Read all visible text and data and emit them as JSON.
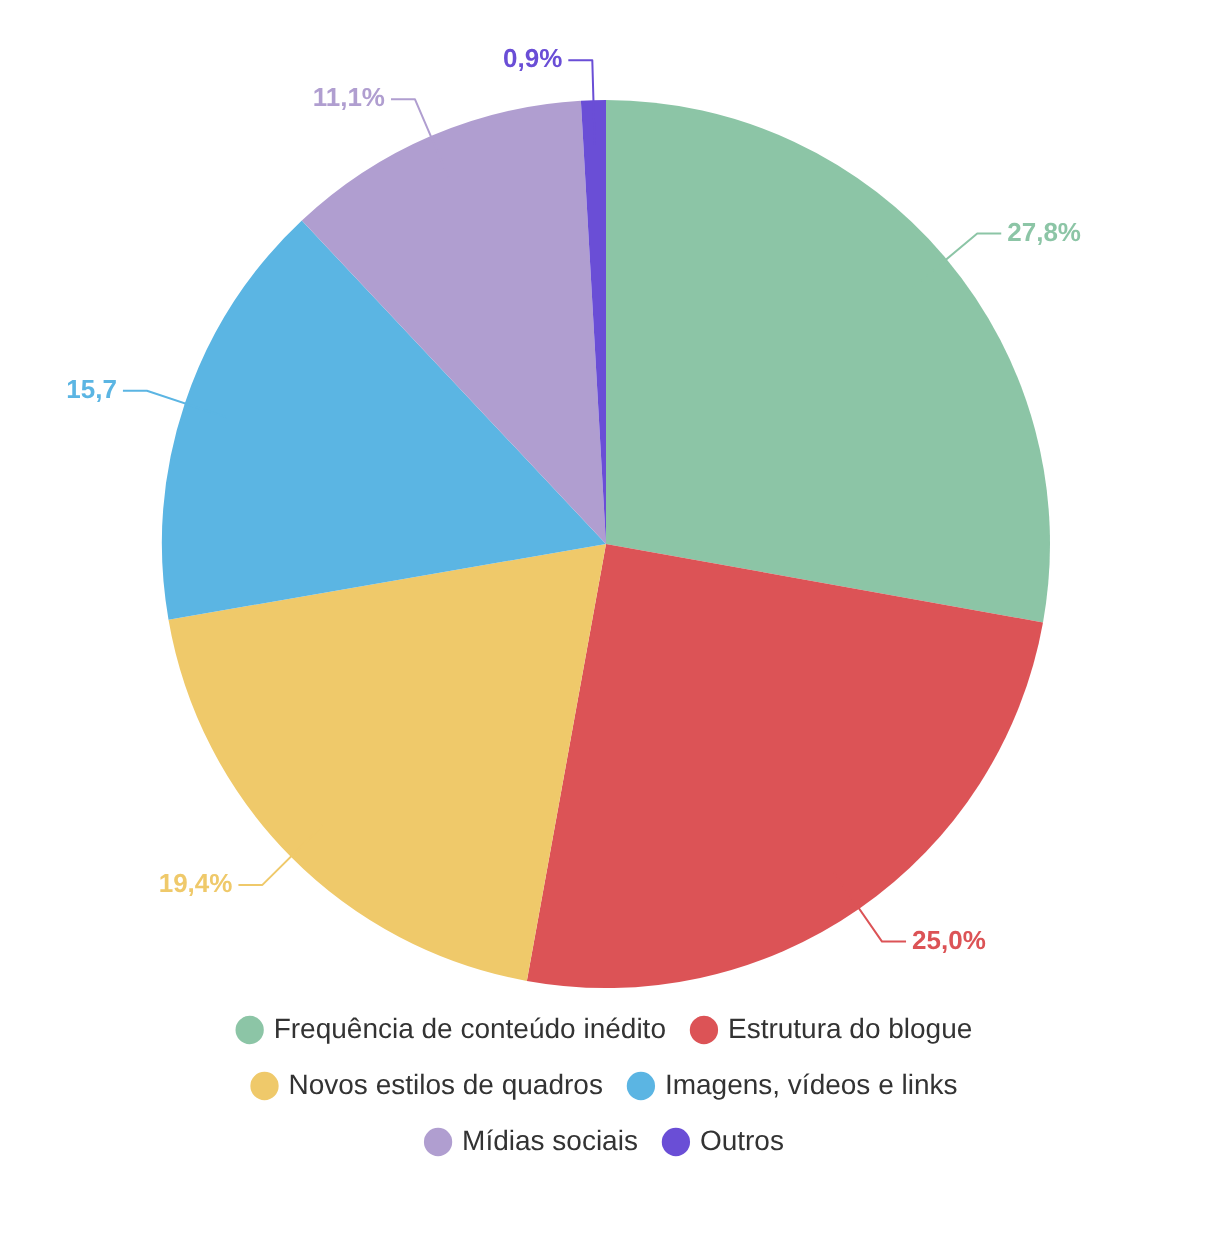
{
  "chart_data": {
    "type": "pie",
    "categories": [
      "Frequência de conteúdo inédito",
      "Estrutura do blogue",
      "Novos estilos de quadros",
      "Imagens, vídeos e links",
      "Mídias sociais",
      "Outros"
    ],
    "values": [
      27.8,
      25.0,
      19.4,
      15.7,
      11.1,
      0.9
    ],
    "value_labels": [
      "27,8%",
      "25,0%",
      "19,4%",
      "15,7",
      "11,1%",
      "0,9%"
    ],
    "colors": [
      "#8cc5a6",
      "#dc5356",
      "#efc96a",
      "#5bb5e3",
      "#b09ed0",
      "#6a4ed6"
    ],
    "legend": "bottom"
  }
}
